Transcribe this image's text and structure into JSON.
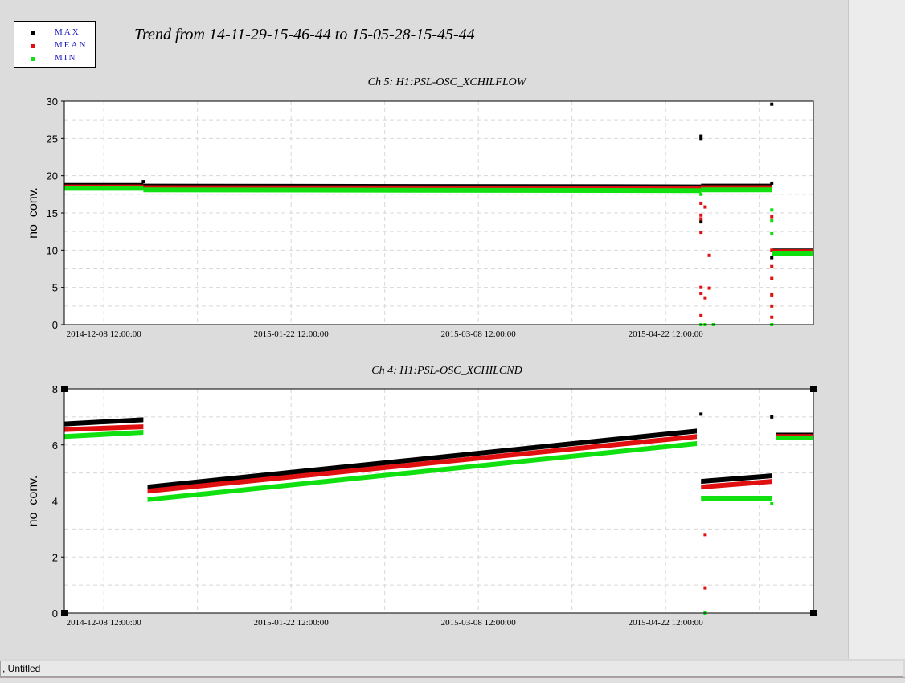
{
  "legend": {
    "items": [
      {
        "label": "MAX",
        "color": "#000000"
      },
      {
        "label": "MEAN",
        "color": "#e01010"
      },
      {
        "label": "MIN",
        "color": "#10e010"
      }
    ]
  },
  "title": "Trend from 14-11-29-15-46-44 to 15-05-28-15-45-44",
  "status_bar": ", Untitled",
  "chart_data": [
    {
      "type": "scatter",
      "title": "Ch 5: H1:PSL-OSC_XCHILFLOW",
      "ylabel": "no_conv.",
      "ylim": [
        0,
        30
      ],
      "yticks": [
        0,
        5,
        10,
        15,
        20,
        25,
        30
      ],
      "xlim": [
        "2014-11-29",
        "2015-05-28"
      ],
      "xticks": [
        "2014-12-08 12:00:00",
        "2015-01-22 12:00:00",
        "2015-03-08 12:00:00",
        "2015-04-22 12:00:00"
      ],
      "grid": true,
      "series": [
        {
          "name": "MAX",
          "color": "#000000",
          "segments": [
            {
              "x": [
                "2014-11-29",
                "2014-12-18"
              ],
              "y": [
                18.7,
                18.7
              ]
            },
            {
              "x": [
                "2014-12-18",
                "2015-05-01"
              ],
              "y": [
                18.6,
                18.5
              ]
            },
            {
              "x": [
                "2015-05-01",
                "2015-05-18"
              ],
              "y": [
                18.6,
                18.6
              ]
            },
            {
              "x": [
                "2015-05-18",
                "2015-05-28"
              ],
              "y": [
                9.9,
                9.9
              ]
            }
          ],
          "points": [
            {
              "x": "2014-12-18",
              "y": 19.2
            },
            {
              "x": "2015-05-01",
              "y": 25.3
            },
            {
              "x": "2015-05-01",
              "y": 25.0
            },
            {
              "x": "2015-05-01",
              "y": 13.8
            },
            {
              "x": "2015-05-18",
              "y": 29.6
            },
            {
              "x": "2015-05-18",
              "y": 19.0
            },
            {
              "x": "2015-05-18",
              "y": 9.0
            }
          ]
        },
        {
          "name": "MEAN",
          "color": "#e01010",
          "segments": [
            {
              "x": [
                "2014-11-29",
                "2014-12-18"
              ],
              "y": [
                18.5,
                18.5
              ]
            },
            {
              "x": [
                "2014-12-18",
                "2015-05-01"
              ],
              "y": [
                18.4,
                18.3
              ]
            },
            {
              "x": [
                "2015-05-01",
                "2015-05-18"
              ],
              "y": [
                18.4,
                18.4
              ]
            },
            {
              "x": [
                "2015-05-18",
                "2015-05-28"
              ],
              "y": [
                9.8,
                9.8
              ]
            }
          ],
          "points": [
            {
              "x": "2015-05-01",
              "y": 16.3
            },
            {
              "x": "2015-05-01",
              "y": 14.7
            },
            {
              "x": "2015-05-01",
              "y": 14.2
            },
            {
              "x": "2015-05-01",
              "y": 12.4
            },
            {
              "x": "2015-05-02",
              "y": 15.8
            },
            {
              "x": "2015-05-01",
              "y": 5.0
            },
            {
              "x": "2015-05-01",
              "y": 4.2
            },
            {
              "x": "2015-05-02",
              "y": 3.6
            },
            {
              "x": "2015-05-01",
              "y": 1.2
            },
            {
              "x": "2015-05-03",
              "y": 9.3
            },
            {
              "x": "2015-05-03",
              "y": 4.9
            },
            {
              "x": "2015-05-18",
              "y": 14.5
            },
            {
              "x": "2015-05-18",
              "y": 10.0
            },
            {
              "x": "2015-05-18",
              "y": 7.8
            },
            {
              "x": "2015-05-18",
              "y": 6.2
            },
            {
              "x": "2015-05-18",
              "y": 4.0
            },
            {
              "x": "2015-05-18",
              "y": 2.5
            },
            {
              "x": "2015-05-18",
              "y": 1.0
            }
          ]
        },
        {
          "name": "MIN",
          "color": "#10e010",
          "segments": [
            {
              "x": [
                "2014-11-29",
                "2014-12-18"
              ],
              "y": [
                18.3,
                18.3
              ]
            },
            {
              "x": [
                "2014-12-18",
                "2015-05-01"
              ],
              "y": [
                18.1,
                18.0
              ]
            },
            {
              "x": [
                "2015-05-01",
                "2015-05-18"
              ],
              "y": [
                18.1,
                18.1
              ]
            },
            {
              "x": [
                "2015-05-18",
                "2015-05-28"
              ],
              "y": [
                9.6,
                9.6
              ]
            }
          ],
          "points": [
            {
              "x": "2015-05-01",
              "y": 17.5
            },
            {
              "x": "2015-05-01",
              "y": 0.0
            },
            {
              "x": "2015-05-02",
              "y": 0.0
            },
            {
              "x": "2015-05-04",
              "y": 0.0
            },
            {
              "x": "2015-05-18",
              "y": 15.4
            },
            {
              "x": "2015-05-18",
              "y": 14.0
            },
            {
              "x": "2015-05-18",
              "y": 12.2
            },
            {
              "x": "2015-05-18",
              "y": 0.0
            }
          ]
        }
      ]
    },
    {
      "type": "scatter",
      "title": "Ch 4: H1:PSL-OSC_XCHILCND",
      "ylabel": "no_conv.",
      "ylim": [
        0,
        8
      ],
      "yticks": [
        0,
        2,
        4,
        6,
        8
      ],
      "xlim": [
        "2014-11-29",
        "2015-05-28"
      ],
      "xticks": [
        "2014-12-08 12:00:00",
        "2015-01-22 12:00:00",
        "2015-03-08 12:00:00",
        "2015-04-22 12:00:00"
      ],
      "grid": true,
      "series": [
        {
          "name": "MAX",
          "color": "#000000",
          "segments": [
            {
              "x": [
                "2014-11-29",
                "2014-12-18"
              ],
              "y": [
                6.75,
                6.9
              ]
            },
            {
              "x": [
                "2014-12-19",
                "2015-04-30"
              ],
              "y": [
                4.5,
                6.5
              ]
            },
            {
              "x": [
                "2015-05-01",
                "2015-05-18"
              ],
              "y": [
                4.7,
                4.9
              ]
            },
            {
              "x": [
                "2015-05-19",
                "2015-05-28"
              ],
              "y": [
                6.35,
                6.35
              ]
            }
          ],
          "points": [
            {
              "x": "2015-05-01",
              "y": 7.1
            },
            {
              "x": "2015-05-18",
              "y": 7.0
            }
          ]
        },
        {
          "name": "MEAN",
          "color": "#e01010",
          "segments": [
            {
              "x": [
                "2014-11-29",
                "2014-12-18"
              ],
              "y": [
                6.55,
                6.65
              ]
            },
            {
              "x": [
                "2014-12-19",
                "2015-04-30"
              ],
              "y": [
                4.35,
                6.3
              ]
            },
            {
              "x": [
                "2015-05-01",
                "2015-05-18"
              ],
              "y": [
                4.5,
                4.7
              ]
            },
            {
              "x": [
                "2015-05-19",
                "2015-05-28"
              ],
              "y": [
                6.3,
                6.3
              ]
            }
          ],
          "points": [
            {
              "x": "2015-05-02",
              "y": 2.8
            },
            {
              "x": "2015-05-02",
              "y": 0.9
            }
          ]
        },
        {
          "name": "MIN",
          "color": "#10e010",
          "segments": [
            {
              "x": [
                "2014-11-29",
                "2014-12-18"
              ],
              "y": [
                6.3,
                6.45
              ]
            },
            {
              "x": [
                "2014-12-19",
                "2015-04-30"
              ],
              "y": [
                4.05,
                6.05
              ]
            },
            {
              "x": [
                "2015-05-01",
                "2015-05-18"
              ],
              "y": [
                4.1,
                4.1
              ]
            },
            {
              "x": [
                "2015-05-19",
                "2015-05-28"
              ],
              "y": [
                6.25,
                6.25
              ]
            }
          ],
          "points": [
            {
              "x": "2015-05-02",
              "y": 0.0
            },
            {
              "x": "2015-05-18",
              "y": 3.9
            }
          ]
        }
      ]
    }
  ]
}
